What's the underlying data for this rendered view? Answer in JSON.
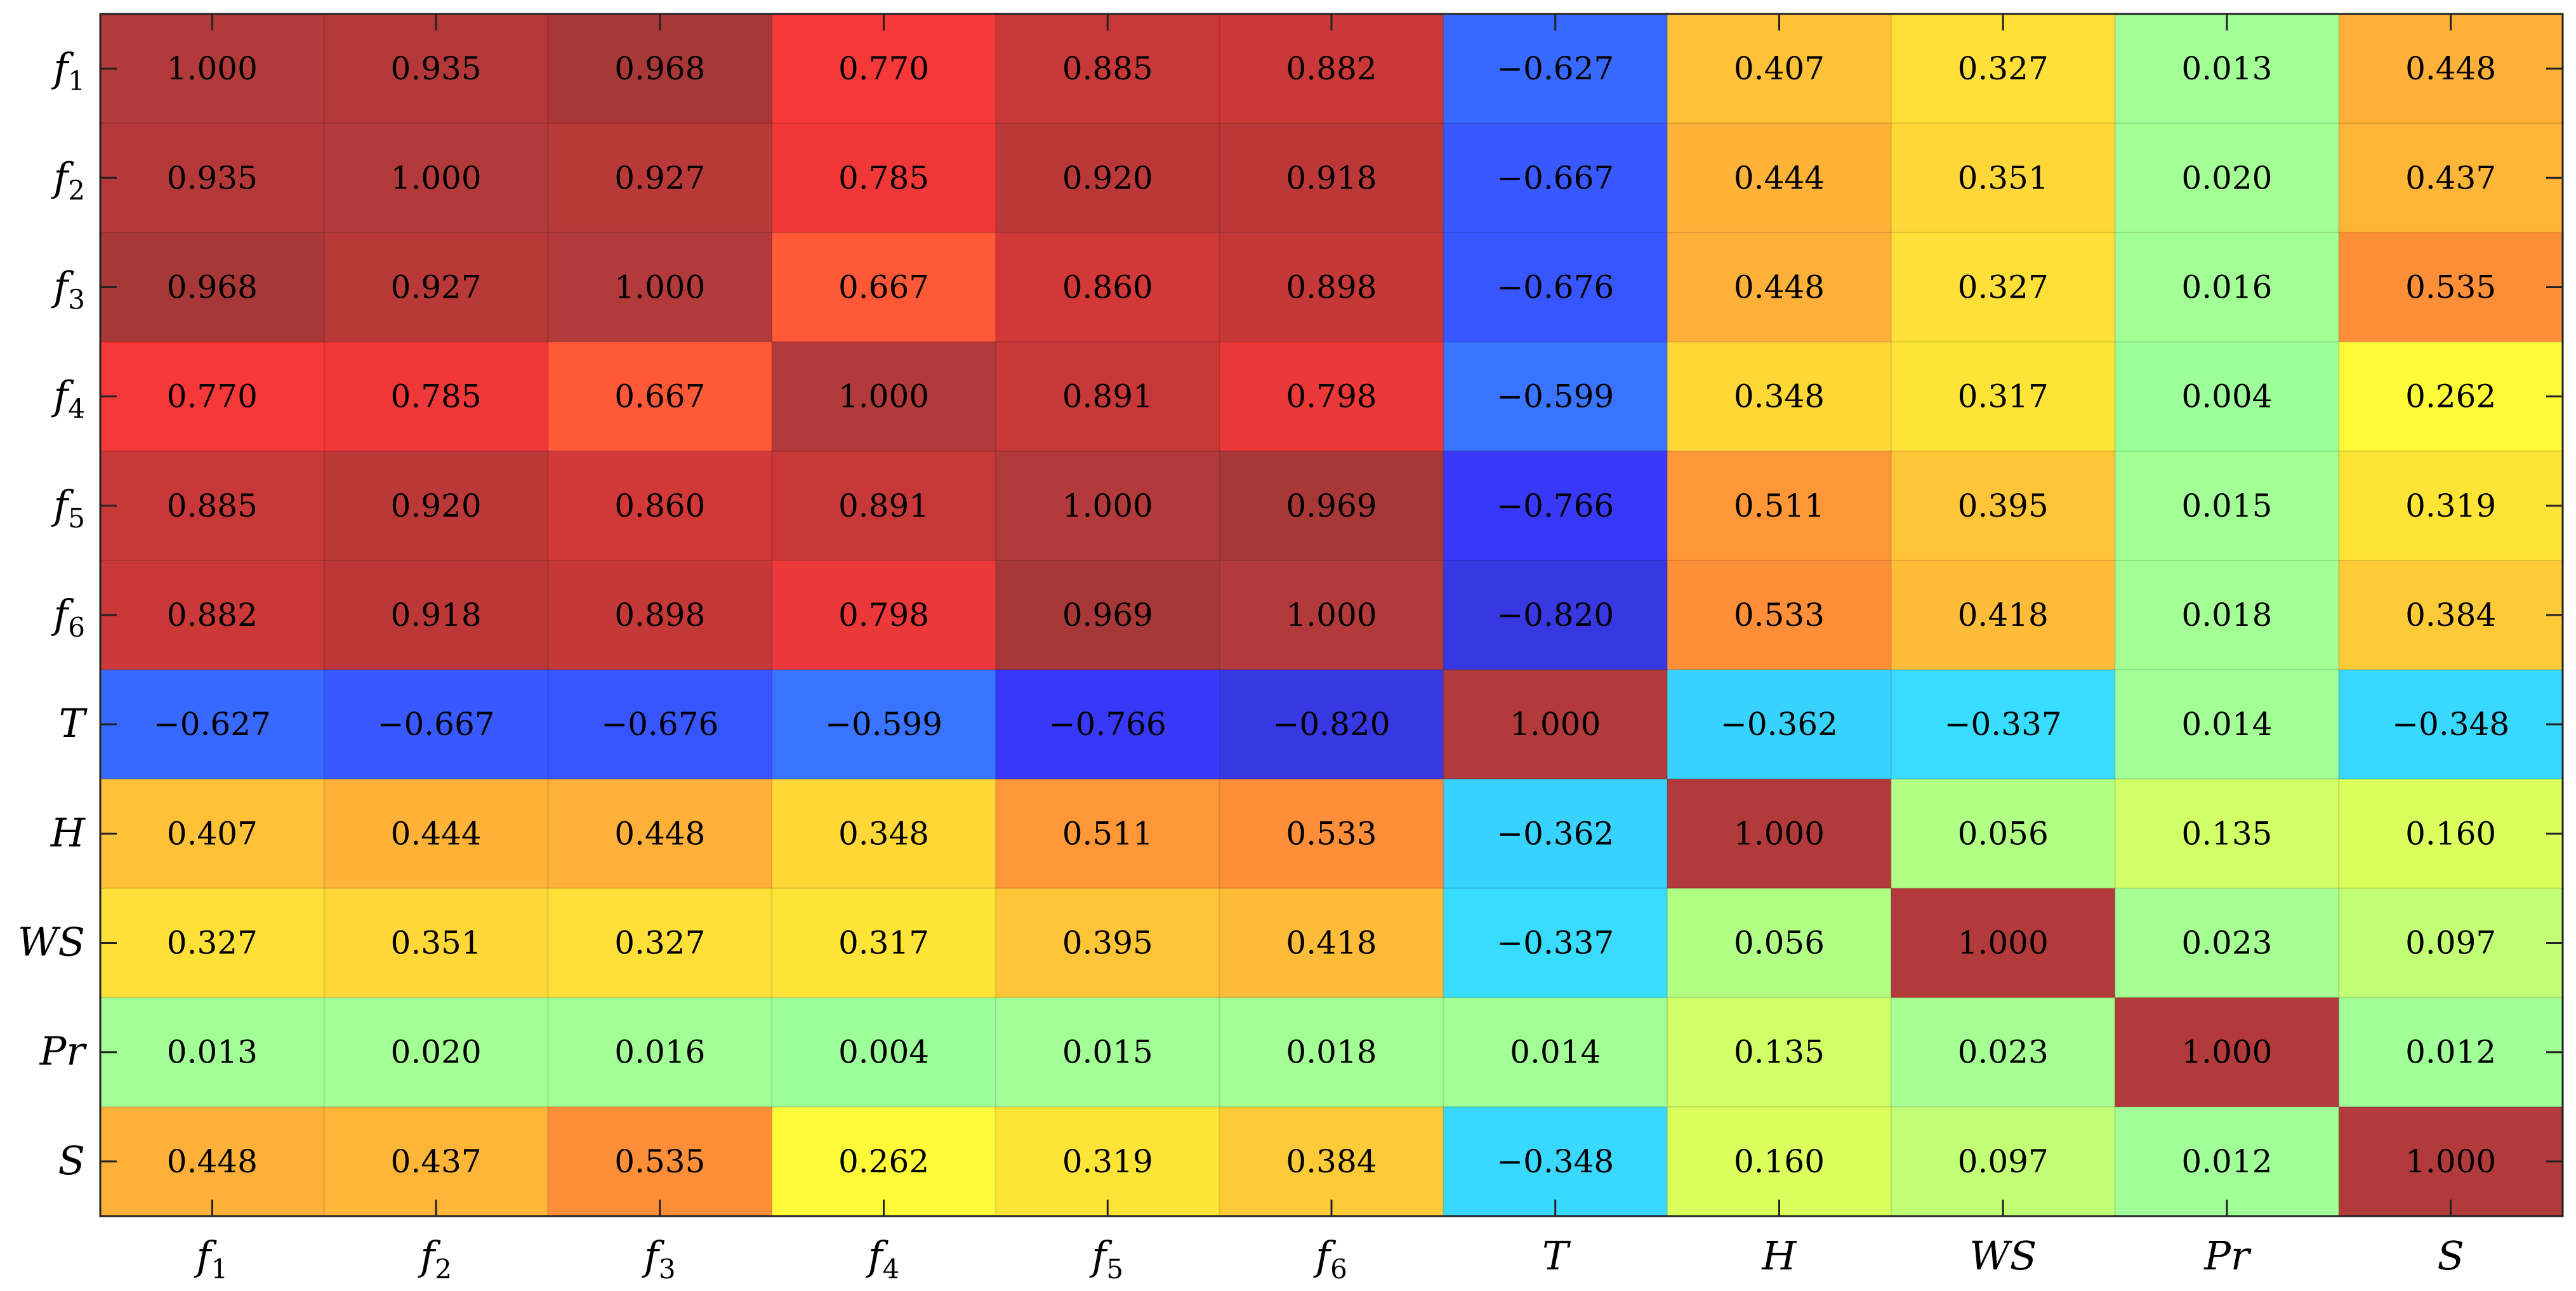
{
  "chart_data": {
    "type": "heatmap",
    "title": "",
    "xlabel": "",
    "ylabel": "",
    "x_labels": [
      {
        "main": "f",
        "sub": "1"
      },
      {
        "main": "f",
        "sub": "2"
      },
      {
        "main": "f",
        "sub": "3"
      },
      {
        "main": "f",
        "sub": "4"
      },
      {
        "main": "f",
        "sub": "5"
      },
      {
        "main": "f",
        "sub": "6"
      },
      {
        "main": "T",
        "sub": ""
      },
      {
        "main": "H",
        "sub": ""
      },
      {
        "main": "WS",
        "sub": ""
      },
      {
        "main": "Pr",
        "sub": ""
      },
      {
        "main": "S",
        "sub": ""
      }
    ],
    "y_labels": [
      {
        "main": "f",
        "sub": "1"
      },
      {
        "main": "f",
        "sub": "2"
      },
      {
        "main": "f",
        "sub": "3"
      },
      {
        "main": "f",
        "sub": "4"
      },
      {
        "main": "f",
        "sub": "5"
      },
      {
        "main": "f",
        "sub": "6"
      },
      {
        "main": "T",
        "sub": ""
      },
      {
        "main": "H",
        "sub": ""
      },
      {
        "main": "WS",
        "sub": ""
      },
      {
        "main": "Pr",
        "sub": ""
      },
      {
        "main": "S",
        "sub": ""
      }
    ],
    "values": [
      [
        1.0,
        0.935,
        0.968,
        0.77,
        0.885,
        0.882,
        -0.627,
        0.407,
        0.327,
        0.013,
        0.448
      ],
      [
        0.935,
        1.0,
        0.927,
        0.785,
        0.92,
        0.918,
        -0.667,
        0.444,
        0.351,
        0.02,
        0.437
      ],
      [
        0.968,
        0.927,
        1.0,
        0.667,
        0.86,
        0.898,
        -0.676,
        0.448,
        0.327,
        0.016,
        0.535
      ],
      [
        0.77,
        0.785,
        0.667,
        1.0,
        0.891,
        0.798,
        -0.599,
        0.348,
        0.317,
        0.004,
        0.262
      ],
      [
        0.885,
        0.92,
        0.86,
        0.891,
        1.0,
        0.969,
        -0.766,
        0.511,
        0.395,
        0.015,
        0.319
      ],
      [
        0.882,
        0.918,
        0.898,
        0.798,
        0.969,
        1.0,
        -0.82,
        0.533,
        0.418,
        0.018,
        0.384
      ],
      [
        -0.627,
        -0.667,
        -0.676,
        -0.599,
        -0.766,
        -0.82,
        1.0,
        -0.362,
        -0.337,
        0.014,
        -0.348
      ],
      [
        0.407,
        0.444,
        0.448,
        0.348,
        0.511,
        0.533,
        -0.362,
        1.0,
        0.056,
        0.135,
        0.16
      ],
      [
        0.327,
        0.351,
        0.327,
        0.317,
        0.395,
        0.418,
        -0.337,
        0.056,
        1.0,
        0.023,
        0.097
      ],
      [
        0.013,
        0.02,
        0.016,
        0.004,
        0.015,
        0.018,
        0.014,
        0.135,
        0.023,
        1.0,
        0.012
      ],
      [
        0.448,
        0.437,
        0.535,
        0.262,
        0.319,
        0.384,
        -0.348,
        0.16,
        0.097,
        0.012,
        1.0
      ]
    ],
    "value_range": [
      -1,
      1
    ],
    "colormap": "jet",
    "diagonal_color": "#b23a3a",
    "grid": true,
    "legend": "none"
  }
}
